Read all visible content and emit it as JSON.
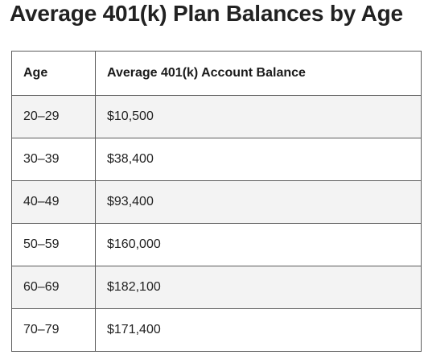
{
  "page": {
    "title": "Average 401(k) Plan Balances by Age"
  },
  "table": {
    "headers": {
      "age": "Age",
      "balance": "Average 401(k) Account Balance"
    },
    "rows": [
      {
        "age": "20–29",
        "balance": "$10,500"
      },
      {
        "age": "30–39",
        "balance": "$38,400"
      },
      {
        "age": "40–49",
        "balance": "$93,400"
      },
      {
        "age": "50–59",
        "balance": "$160,000"
      },
      {
        "age": "60–69",
        "balance": "$182,100"
      },
      {
        "age": "70–79",
        "balance": "$171,400"
      }
    ]
  },
  "colors": {
    "striped_row": "#f3f3f3",
    "border": "#5c5c5c"
  }
}
